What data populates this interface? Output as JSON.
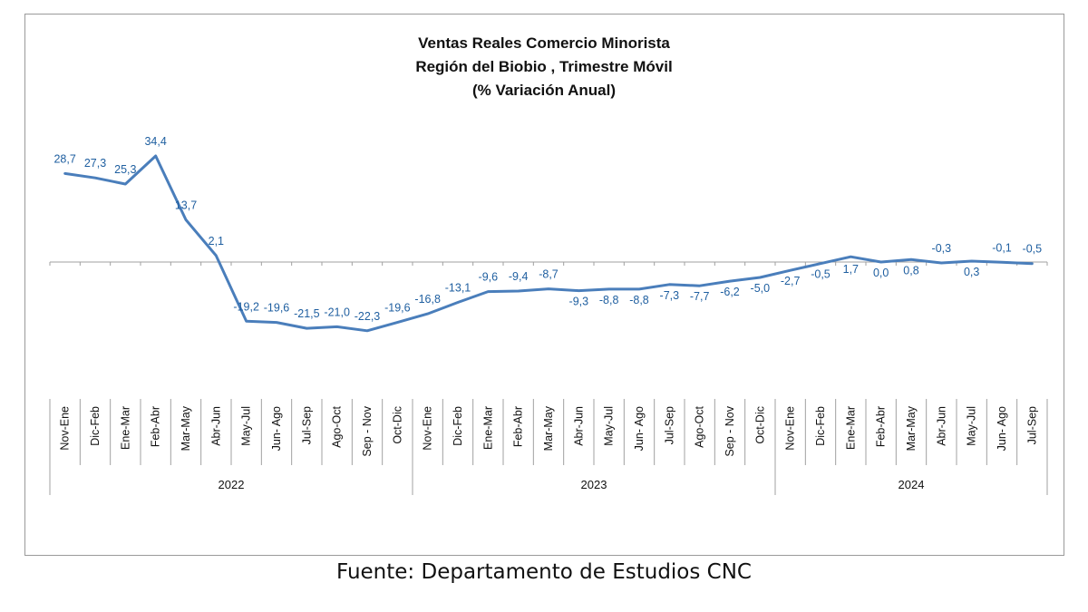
{
  "title_lines": [
    "Ventas Reales Comercio Minorista",
    "Región del Biobio , Trimestre Móvil",
    "(% Variación Anual)"
  ],
  "source": "Fuente: Departamento de Estudios CNC",
  "colors": {
    "line": "#4a7ebb",
    "label": "#1f5fa0",
    "axis": "#a0a0a0"
  },
  "chart_data": {
    "type": "line",
    "title": "Ventas Reales Comercio Minorista Región del Biobio , Trimestre Móvil (% Variación Anual)",
    "xlabel": "",
    "ylabel": "",
    "grid": false,
    "legend": "none",
    "categories": [
      "Nov-Ene",
      "Dic-Feb",
      "Ene-Mar",
      "Feb-Abr",
      "Mar-May",
      "Abr-Jun",
      "May-Jul",
      "Jun- Ago",
      "Jul-Sep",
      "Ago-Oct",
      "Sep - Nov",
      "Oct-Dic",
      "Nov-Ene",
      "Dic-Feb",
      "Ene-Mar",
      "Feb-Abr",
      "Mar-May",
      "Abr-Jun",
      "May-Jul",
      "Jun- Ago",
      "Jul-Sep",
      "Ago-Oct",
      "Sep - Nov",
      "Oct-Dic",
      "Nov-Ene",
      "Dic-Feb",
      "Ene-Mar",
      "Feb-Abr",
      "Mar-May",
      "Abr-Jun",
      "May-Jul",
      "Jun- Ago",
      "Jul-Sep"
    ],
    "groups": [
      {
        "label": "2022",
        "start": 0,
        "end": 11
      },
      {
        "label": "2023",
        "start": 12,
        "end": 23
      },
      {
        "label": "2024",
        "start": 24,
        "end": 32
      }
    ],
    "series": [
      {
        "values": [
          28.7,
          27.3,
          25.3,
          34.4,
          13.7,
          2.1,
          -19.2,
          -19.6,
          -21.5,
          -21.0,
          -22.3,
          -19.6,
          -16.8,
          -13.1,
          -9.6,
          -9.4,
          -8.7,
          -9.3,
          -8.8,
          -8.8,
          -7.3,
          -7.7,
          -6.2,
          -5.0,
          -2.7,
          -0.5,
          1.7,
          0.0,
          0.8,
          -0.3,
          0.3,
          -0.1,
          -0.5
        ],
        "labels": [
          "28,7",
          "27,3",
          "25,3",
          "34,4",
          "13,7",
          "2,1",
          "-19,2",
          "-19,6",
          "-21,5",
          "-21,0",
          "-22,3",
          "-19,6",
          "-16,8",
          "-13,1",
          "-9,6",
          "-9,4",
          "-8,7",
          "-9,3",
          "-8,8",
          "-8,8",
          "-7,3",
          "-7,7",
          "-6,2",
          "-5,0",
          "-2,7",
          "-0,5",
          "1,7",
          "0,0",
          "0,8",
          "-0,3",
          "0,3",
          "-0,1",
          "-0,5"
        ]
      }
    ]
  }
}
